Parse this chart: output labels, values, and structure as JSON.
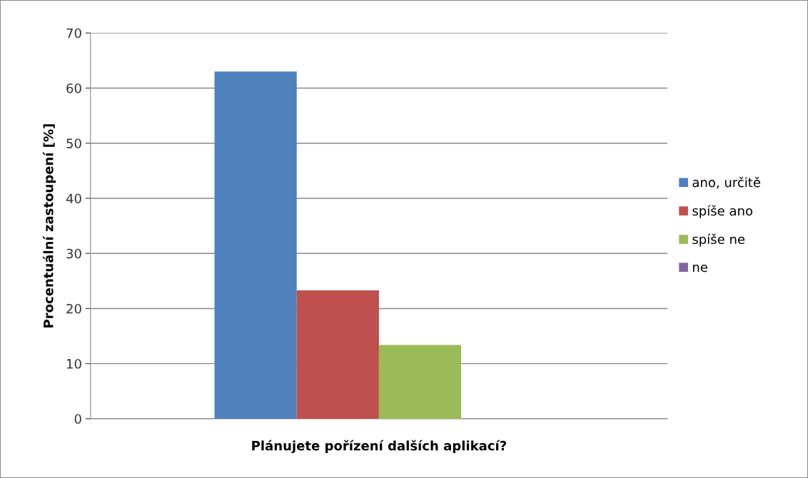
{
  "chart_data": {
    "type": "bar",
    "xlabel": "Plánujete pořízení dalších aplikací?",
    "ylabel": "Procentuální zastoupení [%]",
    "categories": [
      null
    ],
    "series": [
      {
        "name": "ano, určitě",
        "color": "#4f81bd",
        "values": [
          63.0
        ]
      },
      {
        "name": "spíše ano",
        "color": "#c0504d",
        "values": [
          23.3
        ]
      },
      {
        "name": "spíše ne",
        "color": "#9bbb59",
        "values": [
          13.4
        ]
      },
      {
        "name": "ne",
        "color": "#8064a2",
        "values": [
          0
        ]
      }
    ],
    "ylim": [
      0,
      70
    ],
    "yticks": [
      0,
      10,
      20,
      30,
      40,
      50,
      60,
      70
    ],
    "grid": "y",
    "legend": "right"
  }
}
